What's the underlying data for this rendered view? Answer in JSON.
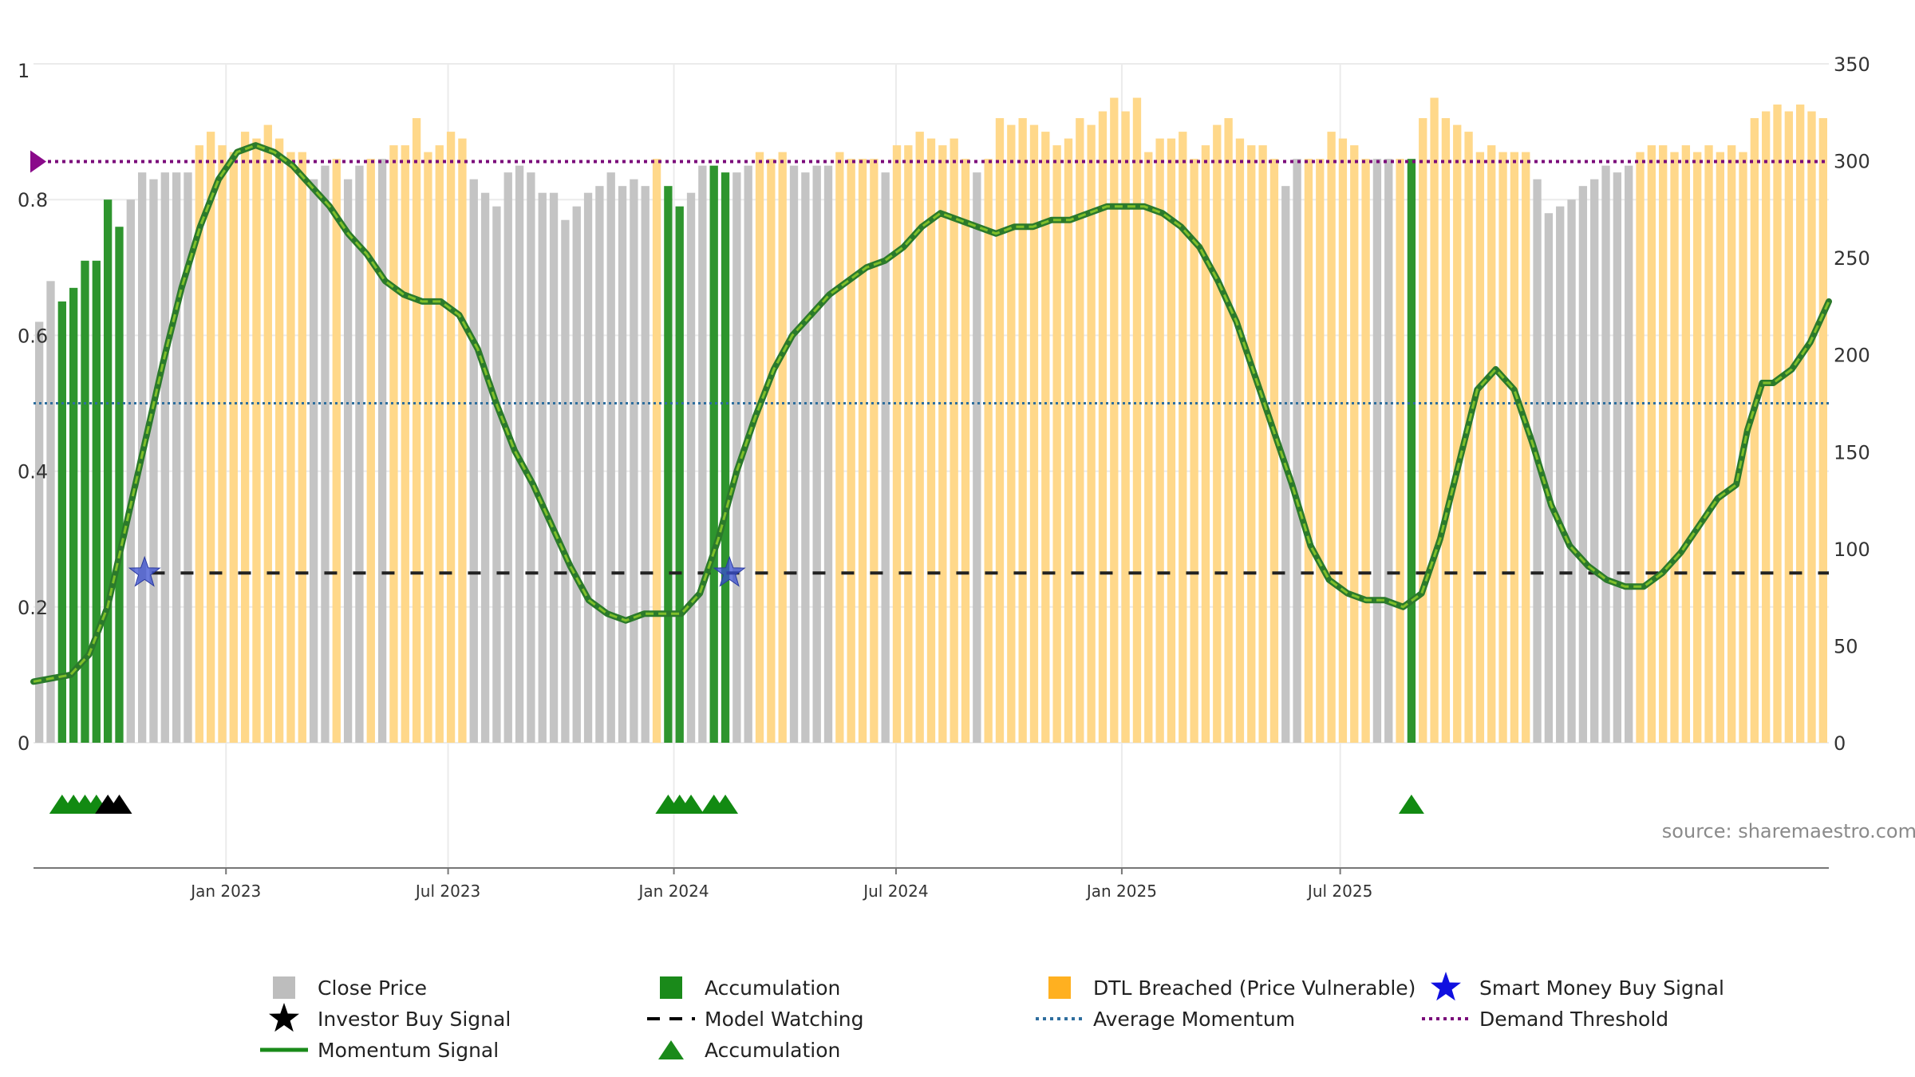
{
  "chart_data": {
    "type": "bar",
    "source": "source: sharemaestro.com",
    "x_tick_labels": [
      "Jan 2023",
      "Jul 2023",
      "Jan 2024",
      "Jul 2024",
      "Jan 2025",
      "Jul 2025"
    ],
    "x_tick_months": [
      5.2,
      11.2,
      17.3,
      23.3,
      29.4,
      35.3
    ],
    "left_axis": {
      "ylim": [
        0,
        1
      ],
      "ticks": [
        0,
        0.2,
        0.4,
        0.6,
        0.8,
        1
      ],
      "tick_labels": [
        "0",
        "0.2",
        "0.4",
        "0.6",
        "0.8",
        "1"
      ]
    },
    "right_axis": {
      "ylim": [
        0,
        350
      ],
      "ticks": [
        0,
        50,
        100,
        150,
        200,
        250,
        300,
        350
      ],
      "tick_labels": [
        "0",
        "50",
        "100",
        "150",
        "200",
        "250",
        "300",
        "350"
      ]
    },
    "bars": [
      [
        0.62,
        "g"
      ],
      [
        0.68,
        "g"
      ],
      [
        0.65,
        "a"
      ],
      [
        0.67,
        "a"
      ],
      [
        0.71,
        "a"
      ],
      [
        0.71,
        "a"
      ],
      [
        0.8,
        "a"
      ],
      [
        0.76,
        "a"
      ],
      [
        0.8,
        "g"
      ],
      [
        0.84,
        "g"
      ],
      [
        0.83,
        "g"
      ],
      [
        0.84,
        "g"
      ],
      [
        0.84,
        "g"
      ],
      [
        0.84,
        "g"
      ],
      [
        0.88,
        "o"
      ],
      [
        0.9,
        "o"
      ],
      [
        0.88,
        "o"
      ],
      [
        0.87,
        "o"
      ],
      [
        0.9,
        "o"
      ],
      [
        0.89,
        "o"
      ],
      [
        0.91,
        "o"
      ],
      [
        0.89,
        "o"
      ],
      [
        0.87,
        "o"
      ],
      [
        0.87,
        "o"
      ],
      [
        0.83,
        "g"
      ],
      [
        0.85,
        "g"
      ],
      [
        0.86,
        "o"
      ],
      [
        0.83,
        "g"
      ],
      [
        0.85,
        "g"
      ],
      [
        0.86,
        "o"
      ],
      [
        0.86,
        "g"
      ],
      [
        0.88,
        "o"
      ],
      [
        0.88,
        "o"
      ],
      [
        0.92,
        "o"
      ],
      [
        0.87,
        "o"
      ],
      [
        0.88,
        "o"
      ],
      [
        0.9,
        "o"
      ],
      [
        0.89,
        "o"
      ],
      [
        0.83,
        "g"
      ],
      [
        0.81,
        "g"
      ],
      [
        0.79,
        "g"
      ],
      [
        0.84,
        "g"
      ],
      [
        0.85,
        "g"
      ],
      [
        0.84,
        "g"
      ],
      [
        0.81,
        "g"
      ],
      [
        0.81,
        "g"
      ],
      [
        0.77,
        "g"
      ],
      [
        0.79,
        "g"
      ],
      [
        0.81,
        "g"
      ],
      [
        0.82,
        "g"
      ],
      [
        0.84,
        "g"
      ],
      [
        0.82,
        "g"
      ],
      [
        0.83,
        "g"
      ],
      [
        0.82,
        "g"
      ],
      [
        0.86,
        "o"
      ],
      [
        0.82,
        "a"
      ],
      [
        0.79,
        "a"
      ],
      [
        0.81,
        "g"
      ],
      [
        0.85,
        "g"
      ],
      [
        0.85,
        "a"
      ],
      [
        0.84,
        "a"
      ],
      [
        0.84,
        "g"
      ],
      [
        0.85,
        "g"
      ],
      [
        0.87,
        "o"
      ],
      [
        0.86,
        "o"
      ],
      [
        0.87,
        "o"
      ],
      [
        0.85,
        "g"
      ],
      [
        0.84,
        "g"
      ],
      [
        0.85,
        "g"
      ],
      [
        0.85,
        "g"
      ],
      [
        0.87,
        "o"
      ],
      [
        0.86,
        "o"
      ],
      [
        0.86,
        "o"
      ],
      [
        0.86,
        "o"
      ],
      [
        0.84,
        "g"
      ],
      [
        0.88,
        "o"
      ],
      [
        0.88,
        "o"
      ],
      [
        0.9,
        "o"
      ],
      [
        0.89,
        "o"
      ],
      [
        0.88,
        "o"
      ],
      [
        0.89,
        "o"
      ],
      [
        0.86,
        "o"
      ],
      [
        0.84,
        "g"
      ],
      [
        0.86,
        "o"
      ],
      [
        0.92,
        "o"
      ],
      [
        0.91,
        "o"
      ],
      [
        0.92,
        "o"
      ],
      [
        0.91,
        "o"
      ],
      [
        0.9,
        "o"
      ],
      [
        0.88,
        "o"
      ],
      [
        0.89,
        "o"
      ],
      [
        0.92,
        "o"
      ],
      [
        0.91,
        "o"
      ],
      [
        0.93,
        "o"
      ],
      [
        0.95,
        "o"
      ],
      [
        0.93,
        "o"
      ],
      [
        0.95,
        "o"
      ],
      [
        0.87,
        "o"
      ],
      [
        0.89,
        "o"
      ],
      [
        0.89,
        "o"
      ],
      [
        0.9,
        "o"
      ],
      [
        0.86,
        "o"
      ],
      [
        0.88,
        "o"
      ],
      [
        0.91,
        "o"
      ],
      [
        0.92,
        "o"
      ],
      [
        0.89,
        "o"
      ],
      [
        0.88,
        "o"
      ],
      [
        0.88,
        "o"
      ],
      [
        0.86,
        "o"
      ],
      [
        0.82,
        "g"
      ],
      [
        0.86,
        "g"
      ],
      [
        0.86,
        "o"
      ],
      [
        0.86,
        "o"
      ],
      [
        0.9,
        "o"
      ],
      [
        0.89,
        "o"
      ],
      [
        0.88,
        "o"
      ],
      [
        0.86,
        "o"
      ],
      [
        0.86,
        "g"
      ],
      [
        0.86,
        "g"
      ],
      [
        0.86,
        "o"
      ],
      [
        0.86,
        "a"
      ],
      [
        0.92,
        "o"
      ],
      [
        0.95,
        "o"
      ],
      [
        0.92,
        "o"
      ],
      [
        0.91,
        "o"
      ],
      [
        0.9,
        "o"
      ],
      [
        0.87,
        "o"
      ],
      [
        0.88,
        "o"
      ],
      [
        0.87,
        "o"
      ],
      [
        0.87,
        "o"
      ],
      [
        0.87,
        "o"
      ],
      [
        0.83,
        "g"
      ],
      [
        0.78,
        "g"
      ],
      [
        0.79,
        "g"
      ],
      [
        0.8,
        "g"
      ],
      [
        0.82,
        "g"
      ],
      [
        0.83,
        "g"
      ],
      [
        0.85,
        "g"
      ],
      [
        0.84,
        "g"
      ],
      [
        0.85,
        "g"
      ],
      [
        0.87,
        "o"
      ],
      [
        0.88,
        "o"
      ],
      [
        0.88,
        "o"
      ],
      [
        0.87,
        "o"
      ],
      [
        0.88,
        "o"
      ],
      [
        0.87,
        "o"
      ],
      [
        0.88,
        "o"
      ],
      [
        0.87,
        "o"
      ],
      [
        0.88,
        "o"
      ],
      [
        0.87,
        "o"
      ],
      [
        0.92,
        "o"
      ],
      [
        0.93,
        "o"
      ],
      [
        0.94,
        "o"
      ],
      [
        0.93,
        "o"
      ],
      [
        0.94,
        "o"
      ],
      [
        0.93,
        "o"
      ],
      [
        0.92,
        "o"
      ]
    ],
    "momentum_signal": [
      [
        0,
        0.09
      ],
      [
        1.0,
        0.1
      ],
      [
        1.5,
        0.13
      ],
      [
        2.0,
        0.2
      ],
      [
        2.5,
        0.32
      ],
      [
        3.0,
        0.44
      ],
      [
        3.5,
        0.56
      ],
      [
        4.0,
        0.67
      ],
      [
        4.5,
        0.76
      ],
      [
        5.0,
        0.83
      ],
      [
        5.5,
        0.87
      ],
      [
        6.0,
        0.88
      ],
      [
        6.5,
        0.87
      ],
      [
        7.0,
        0.85
      ],
      [
        7.5,
        0.82
      ],
      [
        8.0,
        0.79
      ],
      [
        8.5,
        0.75
      ],
      [
        9.0,
        0.72
      ],
      [
        9.5,
        0.68
      ],
      [
        10.0,
        0.66
      ],
      [
        10.5,
        0.65
      ],
      [
        11.0,
        0.65
      ],
      [
        11.5,
        0.63
      ],
      [
        12.0,
        0.58
      ],
      [
        12.5,
        0.5
      ],
      [
        13.0,
        0.43
      ],
      [
        13.5,
        0.38
      ],
      [
        14.0,
        0.32
      ],
      [
        14.5,
        0.26
      ],
      [
        15.0,
        0.21
      ],
      [
        15.5,
        0.19
      ],
      [
        16.0,
        0.18
      ],
      [
        16.5,
        0.19
      ],
      [
        17.0,
        0.19
      ],
      [
        17.5,
        0.19
      ],
      [
        18.0,
        0.22
      ],
      [
        18.5,
        0.3
      ],
      [
        19.0,
        0.4
      ],
      [
        19.5,
        0.48
      ],
      [
        20.0,
        0.55
      ],
      [
        20.5,
        0.6
      ],
      [
        21.0,
        0.63
      ],
      [
        21.5,
        0.66
      ],
      [
        22.0,
        0.68
      ],
      [
        22.5,
        0.7
      ],
      [
        23.0,
        0.71
      ],
      [
        23.5,
        0.73
      ],
      [
        24.0,
        0.76
      ],
      [
        24.5,
        0.78
      ],
      [
        25.0,
        0.77
      ],
      [
        25.5,
        0.76
      ],
      [
        26.0,
        0.75
      ],
      [
        26.5,
        0.76
      ],
      [
        27.0,
        0.76
      ],
      [
        27.5,
        0.77
      ],
      [
        28.0,
        0.77
      ],
      [
        28.5,
        0.78
      ],
      [
        29.0,
        0.79
      ],
      [
        29.5,
        0.79
      ],
      [
        30.0,
        0.79
      ],
      [
        30.5,
        0.78
      ],
      [
        31.0,
        0.76
      ],
      [
        31.5,
        0.73
      ],
      [
        32.0,
        0.68
      ],
      [
        32.5,
        0.62
      ],
      [
        33.0,
        0.54
      ],
      [
        33.5,
        0.46
      ],
      [
        34.0,
        0.38
      ],
      [
        34.5,
        0.29
      ],
      [
        35.0,
        0.24
      ],
      [
        35.5,
        0.22
      ],
      [
        36.0,
        0.21
      ],
      [
        36.5,
        0.21
      ],
      [
        37.0,
        0.2
      ],
      [
        37.5,
        0.22
      ],
      [
        38.0,
        0.3
      ],
      [
        38.5,
        0.41
      ],
      [
        39.0,
        0.52
      ],
      [
        39.5,
        0.55
      ],
      [
        40.0,
        0.52
      ],
      [
        40.5,
        0.44
      ],
      [
        41.0,
        0.35
      ],
      [
        41.5,
        0.29
      ],
      [
        42.0,
        0.26
      ],
      [
        42.5,
        0.24
      ],
      [
        43.0,
        0.23
      ],
      [
        43.5,
        0.23
      ],
      [
        44.0,
        0.25
      ],
      [
        44.5,
        0.28
      ],
      [
        45.0,
        0.32
      ],
      [
        45.5,
        0.36
      ],
      [
        46.0,
        0.38
      ],
      [
        46.3,
        0.46
      ],
      [
        46.7,
        0.53
      ],
      [
        47.0,
        0.53
      ],
      [
        47.5,
        0.55
      ],
      [
        48.0,
        0.59
      ],
      [
        48.5,
        0.65
      ]
    ],
    "momentum_x_range": [
      0,
      48.5
    ],
    "model_watching_level": 0.25,
    "model_watching_start": 3.2,
    "average_momentum_level": 0.5,
    "demand_threshold_level": 0.856,
    "smart_money_buy_signals": [
      [
        3.0,
        0.25
      ],
      [
        18.8,
        0.25
      ]
    ],
    "accumulation_markers": [
      2,
      3,
      4,
      5,
      55,
      56,
      57,
      59,
      60,
      120
    ],
    "investor_buy_markers": [
      6,
      7
    ],
    "legend": [
      {
        "label": "Close Price",
        "color": "#bdbdbd",
        "symbol": "square"
      },
      {
        "label": "Accumulation",
        "color": "#1a8a1a",
        "symbol": "square"
      },
      {
        "label": "DTL Breached (Price Vulnerable)",
        "color": "#ffb020",
        "symbol": "square"
      },
      {
        "label": "Smart Money Buy Signal",
        "color": "#1010e0",
        "symbol": "star"
      },
      {
        "label": "Investor Buy Signal",
        "color": "#000000",
        "symbol": "star"
      },
      {
        "label": "Model Watching",
        "color": "#000000",
        "symbol": "dash"
      },
      {
        "label": "Average Momentum",
        "color": "#2e6e9e",
        "symbol": "dot"
      },
      {
        "label": "Demand Threshold",
        "color": "#7a0a7a",
        "symbol": "dot"
      },
      {
        "label": "Momentum Signal",
        "color": "#1a8a1a",
        "symbol": "line"
      },
      {
        "label": "Accumulation",
        "color": "#1a8a1a",
        "symbol": "triangle"
      }
    ]
  }
}
